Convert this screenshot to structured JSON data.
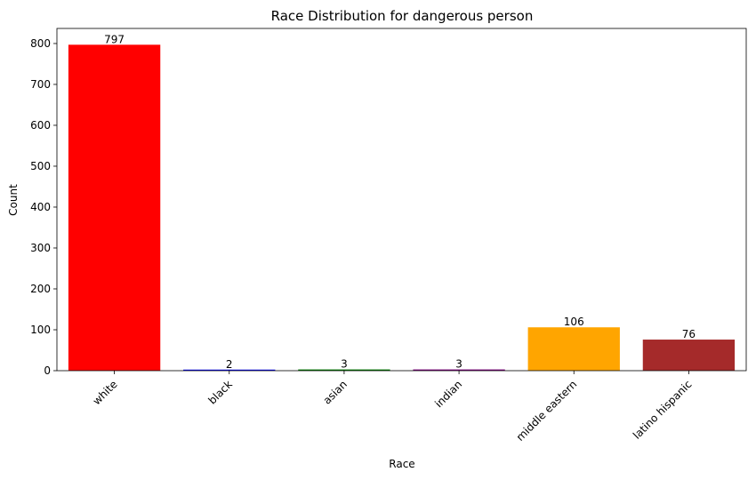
{
  "chart_data": {
    "type": "bar",
    "title": "Race Distribution for dangerous person",
    "xlabel": "Race",
    "ylabel": "Count",
    "categories": [
      "white",
      "black",
      "asian",
      "indian",
      "middle eastern",
      "latino hispanic"
    ],
    "values": [
      797,
      2,
      3,
      3,
      106,
      76
    ],
    "value_labels": [
      "797",
      "2",
      "3",
      "3",
      "106",
      "76"
    ],
    "colors": [
      "#ff0000",
      "#0000ff",
      "#008000",
      "#800080",
      "#ffa500",
      "#a52a2a"
    ],
    "ylim": [
      0,
      836.85
    ],
    "yticks": [
      0,
      100,
      200,
      300,
      400,
      500,
      600,
      700,
      800
    ],
    "ytick_labels": [
      "0",
      "100",
      "200",
      "300",
      "400",
      "500",
      "600",
      "700",
      "800"
    ],
    "xtick_rotation": 45,
    "grid": false,
    "legend": "none"
  }
}
